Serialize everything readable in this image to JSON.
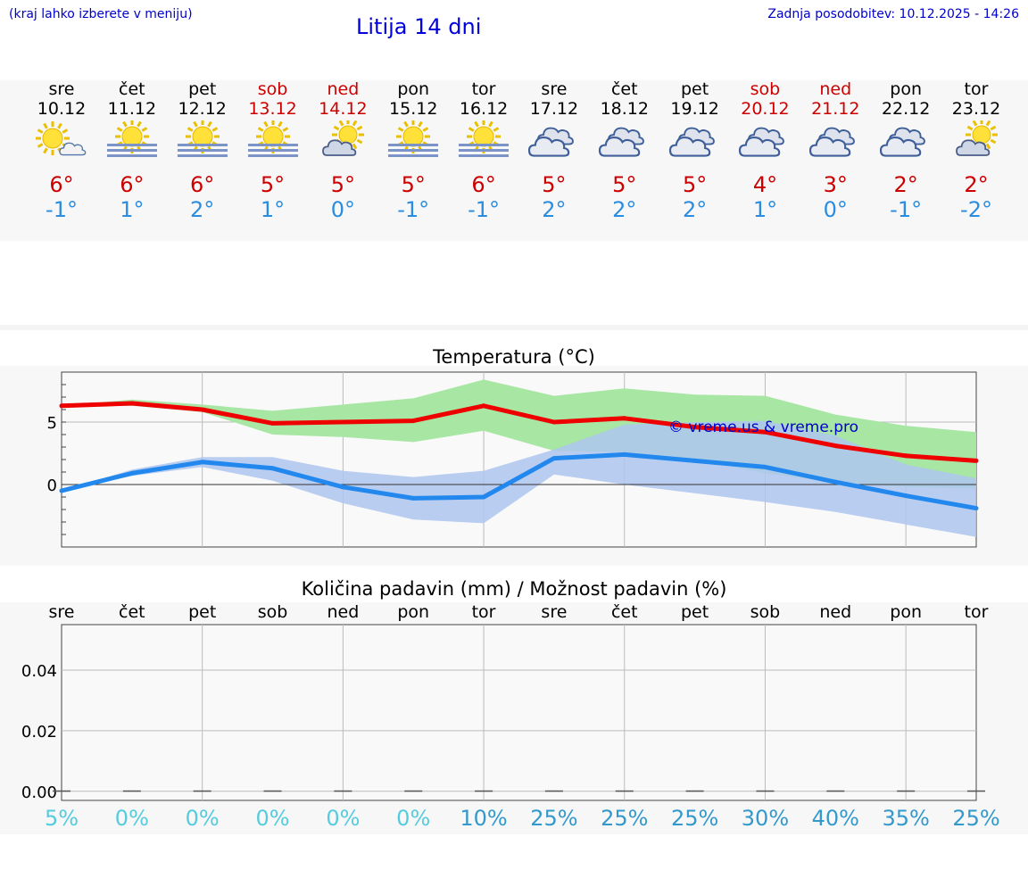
{
  "header": {
    "menu_hint": "(kraj lahko izberete v meniju)",
    "title": "Litija 14 dni",
    "last_update": "Zadnja posodobitev: 10.12.2025 - 14:26"
  },
  "days": [
    {
      "name": "sre",
      "date": "10.12",
      "weekend": false,
      "icon": "sun-cloud-icon",
      "tmax": "6°",
      "tmin": "-1°"
    },
    {
      "name": "čet",
      "date": "11.12",
      "weekend": false,
      "icon": "sun-fog-icon",
      "tmax": "6°",
      "tmin": "1°"
    },
    {
      "name": "pet",
      "date": "12.12",
      "weekend": false,
      "icon": "sun-fog-icon",
      "tmax": "6°",
      "tmin": "2°"
    },
    {
      "name": "sob",
      "date": "13.12",
      "weekend": true,
      "icon": "sun-fog-icon",
      "tmax": "5°",
      "tmin": "1°"
    },
    {
      "name": "ned",
      "date": "14.12",
      "weekend": true,
      "icon": "cloud-sun-icon",
      "tmax": "5°",
      "tmin": "0°"
    },
    {
      "name": "pon",
      "date": "15.12",
      "weekend": false,
      "icon": "sun-fog-icon",
      "tmax": "5°",
      "tmin": "-1°"
    },
    {
      "name": "tor",
      "date": "16.12",
      "weekend": false,
      "icon": "sun-fog-icon",
      "tmax": "6°",
      "tmin": "-1°"
    },
    {
      "name": "sre",
      "date": "17.12",
      "weekend": false,
      "icon": "cloudy-icon",
      "tmax": "5°",
      "tmin": "2°"
    },
    {
      "name": "čet",
      "date": "18.12",
      "weekend": false,
      "icon": "cloudy-icon",
      "tmax": "5°",
      "tmin": "2°"
    },
    {
      "name": "pet",
      "date": "19.12",
      "weekend": false,
      "icon": "cloudy-icon",
      "tmax": "5°",
      "tmin": "2°"
    },
    {
      "name": "sob",
      "date": "20.12",
      "weekend": true,
      "icon": "cloudy-icon",
      "tmax": "4°",
      "tmin": "1°"
    },
    {
      "name": "ned",
      "date": "21.12",
      "weekend": true,
      "icon": "cloudy-icon",
      "tmax": "3°",
      "tmin": "0°"
    },
    {
      "name": "pon",
      "date": "22.12",
      "weekend": false,
      "icon": "cloudy-icon",
      "tmax": "2°",
      "tmin": "-1°"
    },
    {
      "name": "tor",
      "date": "23.12",
      "weekend": false,
      "icon": "cloud-sun-icon",
      "tmax": "2°",
      "tmin": "-2°"
    }
  ],
  "colors": {
    "max_line": "#ee0000",
    "min_line": "#2288ee",
    "max_band": "#a8e6a4",
    "min_band": "#aec6f0",
    "overlap_band": "#7fbfa8",
    "watermark": "#0000cc"
  },
  "chart_data": [
    {
      "type": "line",
      "title": "Temperatura (°C)",
      "watermark": "© vreme.us & vreme.pro",
      "ylim": [
        -5,
        9
      ],
      "yticks": [
        0,
        5
      ],
      "ytick_labels": [
        "0",
        "5"
      ],
      "x": [
        0,
        1,
        2,
        3,
        4,
        5,
        6,
        7,
        8,
        9,
        10,
        11,
        12,
        13
      ],
      "series": [
        {
          "name": "max",
          "values": [
            6.3,
            6.5,
            6.0,
            4.9,
            5.0,
            5.1,
            6.3,
            5.0,
            5.3,
            4.6,
            4.2,
            3.1,
            2.3,
            1.9
          ],
          "band_low": [
            6.3,
            6.3,
            5.8,
            4.0,
            3.8,
            3.4,
            4.3,
            2.7,
            2.6,
            2.0,
            0.9,
            0.2,
            -0.2,
            -0.3
          ],
          "band_high": [
            6.3,
            6.8,
            6.4,
            5.9,
            6.4,
            6.9,
            8.4,
            7.1,
            7.7,
            7.2,
            7.1,
            5.6,
            4.7,
            4.2
          ]
        },
        {
          "name": "min",
          "values": [
            -0.5,
            0.9,
            1.8,
            1.3,
            -0.2,
            -1.1,
            -1.0,
            2.1,
            2.4,
            1.9,
            1.4,
            0.2,
            -0.9,
            -1.9
          ],
          "band_low": [
            -0.5,
            0.7,
            1.4,
            0.3,
            -1.5,
            -2.8,
            -3.1,
            0.8,
            0.0,
            -0.7,
            -1.4,
            -2.2,
            -3.2,
            -4.2
          ],
          "band_high": [
            -0.5,
            1.2,
            2.2,
            2.2,
            1.1,
            0.6,
            1.1,
            2.8,
            4.8,
            5.0,
            5.1,
            3.9,
            1.6,
            0.5
          ]
        }
      ]
    },
    {
      "type": "bar",
      "title": "Količina padavin (mm) / Možnost padavin (%)",
      "categories": [
        "sre",
        "čet",
        "pet",
        "sob",
        "ned",
        "pon",
        "tor",
        "sre",
        "čet",
        "pet",
        "sob",
        "ned",
        "pon",
        "tor"
      ],
      "values": [
        0,
        0,
        0,
        0,
        0,
        0,
        0,
        0,
        0,
        0,
        0,
        0,
        0,
        0
      ],
      "ylim": [
        -0.003,
        0.055
      ],
      "yticks": [
        0.0,
        0.02,
        0.04
      ],
      "ytick_labels": [
        "0.00",
        "0.02",
        "0.04"
      ],
      "chance": [
        "5%",
        "0%",
        "0%",
        "0%",
        "0%",
        "0%",
        "10%",
        "25%",
        "25%",
        "25%",
        "30%",
        "40%",
        "35%",
        "25%"
      ],
      "chance_values": [
        5,
        0,
        0,
        0,
        0,
        0,
        10,
        25,
        25,
        25,
        30,
        40,
        35,
        25
      ]
    }
  ]
}
